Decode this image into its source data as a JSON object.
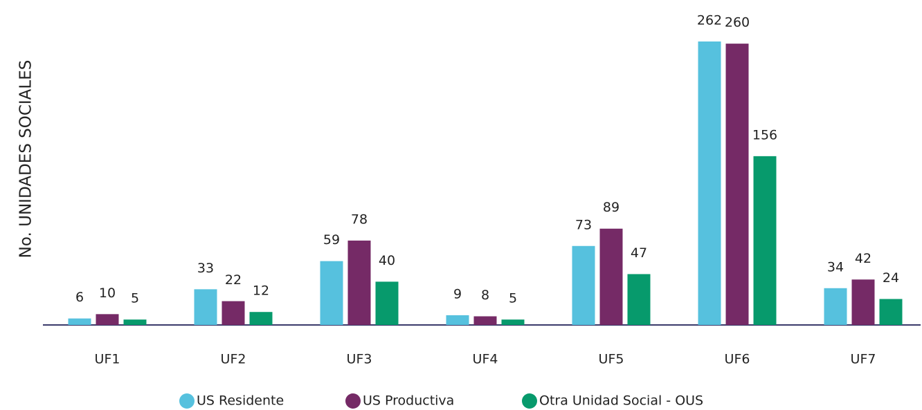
{
  "chart_data": {
    "type": "bar",
    "y_label": "No. UNIDADES SOCIALES",
    "categories": [
      "UF1",
      "UF2",
      "UF3",
      "UF4",
      "UF5",
      "UF6",
      "UF7"
    ],
    "series": [
      {
        "name": "US Residente",
        "color": "#56c1de",
        "values": [
          6,
          33,
          59,
          9,
          73,
          262,
          34
        ]
      },
      {
        "name": "US Productiva",
        "color": "#752a66",
        "values": [
          10,
          22,
          78,
          8,
          89,
          260,
          42
        ]
      },
      {
        "name": "Otra Unidad Social - OUS",
        "color": "#079a6c",
        "values": [
          5,
          12,
          40,
          5,
          47,
          156,
          24
        ]
      }
    ]
  }
}
